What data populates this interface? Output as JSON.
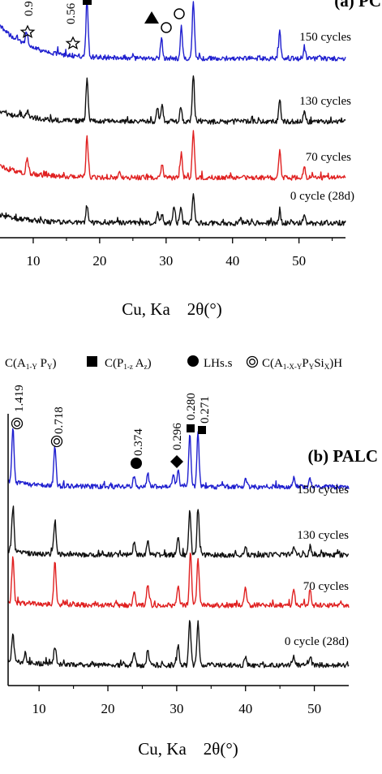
{
  "chart_data": [
    {
      "type": "line",
      "title": "(a) PC",
      "xlabel": "Cu, Ka    2θ(°)",
      "ylabel": "",
      "xlim": [
        5,
        57
      ],
      "xticks": [
        10,
        20,
        30,
        40,
        50
      ],
      "grid": false,
      "series": [
        {
          "name": "150 cycles",
          "color": "#1f1fcf",
          "peaks": [
            [
              9,
              0.25
            ],
            [
              18.1,
              1.0
            ],
            [
              29.3,
              0.35
            ],
            [
              32.3,
              0.55
            ],
            [
              34.1,
              1.0
            ],
            [
              47.1,
              0.45
            ],
            [
              50.8,
              0.2
            ]
          ]
        },
        {
          "name": "130 cycles",
          "color": "#111111",
          "peaks": [
            [
              9.1,
              0.15
            ],
            [
              18.1,
              0.85
            ],
            [
              28.7,
              0.25
            ],
            [
              29.4,
              0.3
            ],
            [
              32.2,
              0.3
            ],
            [
              34.1,
              0.95
            ],
            [
              47.1,
              0.45
            ],
            [
              50.8,
              0.2
            ]
          ]
        },
        {
          "name": "70 cycles",
          "color": "#e02020",
          "peaks": [
            [
              9.1,
              0.3
            ],
            [
              18.1,
              0.85
            ],
            [
              23.0,
              0.15
            ],
            [
              29.4,
              0.25
            ],
            [
              32.3,
              0.45
            ],
            [
              34.1,
              1.0
            ],
            [
              47.1,
              0.55
            ],
            [
              50.8,
              0.25
            ]
          ]
        },
        {
          "name": "0 cycle (28d)",
          "color": "#111111",
          "peaks": [
            [
              18.1,
              0.55
            ],
            [
              28.7,
              0.3
            ],
            [
              29.4,
              0.3
            ],
            [
              31.2,
              0.55
            ],
            [
              32.2,
              0.5
            ],
            [
              34.1,
              0.9
            ],
            [
              41.2,
              0.15
            ],
            [
              47.1,
              0.35
            ],
            [
              50.8,
              0.2
            ]
          ]
        }
      ],
      "annotations": [
        "0.9",
        "0.56"
      ]
    },
    {
      "type": "line",
      "title": "(b) PALC",
      "xlabel": "Cu, Ka    2θ(°)",
      "ylabel": "",
      "xlim": [
        5.5,
        55
      ],
      "xticks": [
        10,
        20,
        30,
        40,
        50
      ],
      "grid": false,
      "series": [
        {
          "name": "150 cycles",
          "color": "#1f1fcf",
          "peaks": [
            [
              6.2,
              1.0
            ],
            [
              12.3,
              0.75
            ],
            [
              23.8,
              0.2
            ],
            [
              25.8,
              0.25
            ],
            [
              29.5,
              0.2
            ],
            [
              30.2,
              0.3
            ],
            [
              31.9,
              1.0
            ],
            [
              33.1,
              1.0
            ],
            [
              40.0,
              0.15
            ],
            [
              47.0,
              0.15
            ],
            [
              49.4,
              0.15
            ]
          ]
        },
        {
          "name": "130 cycles",
          "color": "#111111",
          "peaks": [
            [
              6.2,
              0.95
            ],
            [
              12.3,
              0.7
            ],
            [
              23.8,
              0.25
            ],
            [
              25.8,
              0.3
            ],
            [
              30.2,
              0.35
            ],
            [
              31.9,
              0.95
            ],
            [
              33.1,
              1.0
            ],
            [
              40.0,
              0.15
            ],
            [
              47.0,
              0.15
            ],
            [
              49.4,
              0.15
            ]
          ]
        },
        {
          "name": "70 cycles",
          "color": "#e02020",
          "peaks": [
            [
              6.2,
              0.9
            ],
            [
              12.3,
              0.85
            ],
            [
              23.8,
              0.3
            ],
            [
              25.8,
              0.4
            ],
            [
              30.2,
              0.4
            ],
            [
              32.0,
              1.05
            ],
            [
              33.1,
              0.95
            ],
            [
              40.0,
              0.35
            ],
            [
              47.0,
              0.3
            ],
            [
              49.4,
              0.3
            ]
          ]
        },
        {
          "name": "0 cycle (28d)",
          "color": "#111111",
          "peaks": [
            [
              6.2,
              0.6
            ],
            [
              8.0,
              0.2
            ],
            [
              12.3,
              0.4
            ],
            [
              23.8,
              0.3
            ],
            [
              25.8,
              0.35
            ],
            [
              30.2,
              0.45
            ],
            [
              31.9,
              1.0
            ],
            [
              33.1,
              1.0
            ],
            [
              40.0,
              0.2
            ],
            [
              47.0,
              0.2
            ],
            [
              49.4,
              0.2
            ]
          ]
        }
      ],
      "annotations": [
        "1.419",
        "0.718",
        "0.374",
        "0.296",
        "0.280",
        "0.271"
      ],
      "legend": {
        "placement": "top",
        "items": [
          {
            "symbol": "none",
            "main": "C(A",
            "sub1": "1-Y",
            "mid": " P",
            "sub2": "Y",
            "end": ")"
          },
          {
            "symbol": "square",
            "main": "C(P",
            "sub1": "1-z",
            "mid": " A",
            "sub2": "z",
            "end": ")"
          },
          {
            "symbol": "circle",
            "main": "LHs.s",
            "sub1": "",
            "mid": "",
            "sub2": "",
            "end": ""
          },
          {
            "symbol": "double-circle",
            "main": "C(A",
            "sub1": "1-X-Y",
            "mid": "P",
            "sub2": "Y",
            "end": "Si",
            "sub3": "X",
            "tail": ")H"
          }
        ]
      }
    }
  ]
}
